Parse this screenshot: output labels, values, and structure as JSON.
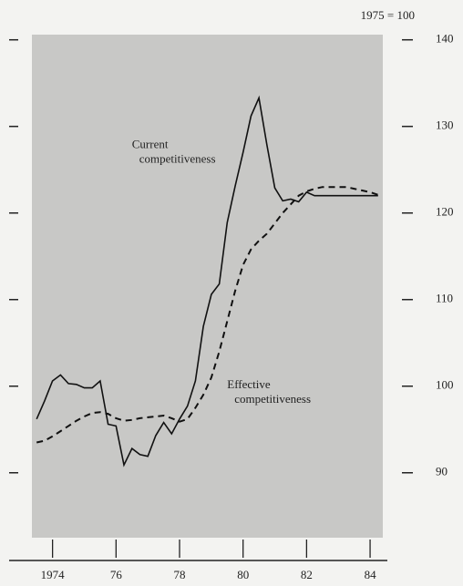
{
  "chart_data": {
    "type": "line",
    "unit_note": "1975 = 100",
    "x": [
      1973.5,
      1973.75,
      1974,
      1974.25,
      1974.5,
      1974.75,
      1975,
      1975.25,
      1975.5,
      1975.75,
      1976,
      1976.25,
      1976.5,
      1976.75,
      1977,
      1977.25,
      1977.5,
      1977.75,
      1978,
      1978.25,
      1978.5,
      1978.75,
      1979,
      1979.25,
      1979.5,
      1979.75,
      1980,
      1980.25,
      1980.5,
      1980.75,
      1981,
      1981.25,
      1981.5,
      1981.75,
      1982,
      1982.25,
      1982.5,
      1982.75,
      1983,
      1983.25,
      1983.5,
      1983.75,
      1984,
      1984.25
    ],
    "series": [
      {
        "name": "Current competitiveness",
        "color": "#111111",
        "dash": false,
        "values": [
          96.2,
          98.3,
          100.6,
          101.3,
          100.3,
          100.2,
          99.8,
          99.8,
          100.6,
          95.6,
          95.4,
          90.9,
          92.8,
          92.1,
          91.9,
          94.3,
          95.8,
          94.5,
          96.2,
          97.7,
          100.6,
          106.9,
          110.6,
          111.8,
          118.9,
          123.1,
          127.0,
          131.2,
          133.3,
          127.9,
          122.9,
          121.4,
          121.6,
          121.3,
          122.4,
          122.0,
          122.0,
          122.0,
          122.0,
          122.0,
          122.0,
          122.0,
          122.0,
          122.0
        ]
      },
      {
        "name": "Effective competitiveness",
        "color": "#111111",
        "dash": true,
        "values": [
          93.5,
          93.7,
          94.2,
          94.8,
          95.4,
          96.0,
          96.5,
          96.9,
          97.0,
          96.8,
          96.3,
          96.0,
          96.1,
          96.3,
          96.4,
          96.5,
          96.6,
          96.3,
          95.9,
          96.2,
          97.5,
          99.0,
          101.0,
          104.0,
          107.5,
          111.0,
          114.0,
          115.8,
          116.8,
          117.6,
          118.8,
          120.0,
          121.0,
          122.0,
          122.5,
          122.8,
          123.0,
          123.0,
          123.0,
          123.0,
          122.8,
          122.6,
          122.4,
          122.1
        ]
      }
    ],
    "annotations": [
      {
        "lines": [
          "Current",
          "competitiveness"
        ],
        "x": 1976.5,
        "y": 127.8
      },
      {
        "lines": [
          "Effective",
          "competitiveness"
        ],
        "x": 1979.5,
        "y": 100.1
      }
    ],
    "xlim": [
      1973.35,
      1984.4
    ],
    "xticks": [
      {
        "value": 1974,
        "label": "1974"
      },
      {
        "value": 1976,
        "label": "76"
      },
      {
        "value": 1978,
        "label": "78"
      },
      {
        "value": 1980,
        "label": "80"
      },
      {
        "value": 1982,
        "label": "82"
      },
      {
        "value": 1984,
        "label": "84"
      }
    ],
    "ylim": [
      82.5,
      140.6
    ],
    "yticks": [
      90,
      100,
      110,
      120,
      130,
      140
    ]
  }
}
